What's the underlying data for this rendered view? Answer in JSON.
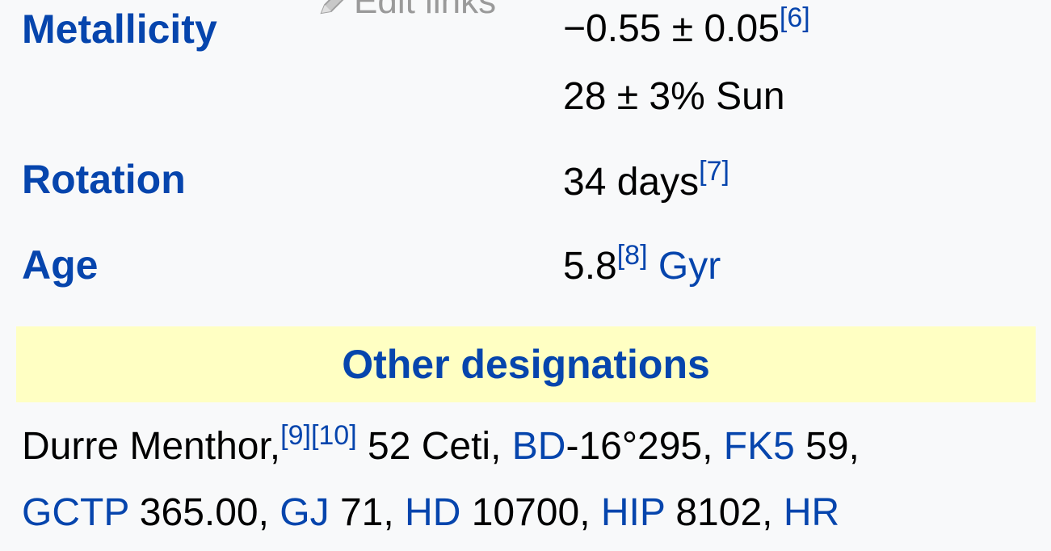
{
  "edit_links": "Edit links",
  "rows": {
    "metallicity": {
      "label": "Metallicity",
      "value1": "−0.55 ± 0.05",
      "ref1": "[6]",
      "value2": "28 ± 3% Sun"
    },
    "rotation": {
      "label": "Rotation",
      "value": "34 days",
      "ref": "[7]"
    },
    "age": {
      "label": "Age",
      "value": "5.8",
      "ref": "[8]",
      "unit": "Gyr"
    }
  },
  "section": {
    "title": "Other designations"
  },
  "designations": {
    "line1": {
      "t1": "Durre Menthor,",
      "ref9": "[9]",
      "ref10": "[10]",
      "t2": " 52 Ceti, ",
      "bd": "BD",
      "t3": "-16°295, ",
      "fk5": "FK5",
      "t4": " 59,"
    },
    "line2": {
      "gctp": "GCTP",
      "t1": " 365.00, ",
      "gj": "GJ",
      "t2": " 71, ",
      "hd": "HD",
      "t3": " 10700, ",
      "hip": "HIP",
      "t4": " 8102, ",
      "hr": "HR"
    }
  },
  "colors": {
    "link": "#0645ad",
    "header_bg": "#ffffc3",
    "background": "#f8f9fa"
  }
}
